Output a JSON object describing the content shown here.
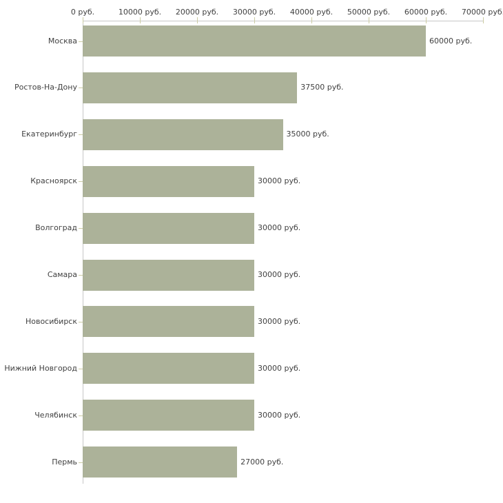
{
  "chart_data": {
    "type": "bar",
    "orientation": "horizontal",
    "title": "",
    "xlabel": "",
    "ylabel": "",
    "unit": "руб.",
    "categories": [
      "Москва",
      "Ростов-На-Дону",
      "Екатеринбург",
      "Красноярск",
      "Волгоград",
      "Самара",
      "Новосибирск",
      "Нижний Новгород",
      "Челябинск",
      "Пермь"
    ],
    "values": [
      60000,
      37500,
      35000,
      30000,
      30000,
      30000,
      30000,
      30000,
      30000,
      27000
    ],
    "value_labels": [
      "60000 руб.",
      "37500 руб.",
      "35000 руб.",
      "30000 руб.",
      "30000 руб.",
      "30000 руб.",
      "30000 руб.",
      "30000 руб.",
      "30000 руб.",
      "27000 руб."
    ],
    "x_ticks": [
      0,
      10000,
      20000,
      30000,
      40000,
      50000,
      60000,
      70000
    ],
    "x_tick_labels": [
      "0 руб.",
      "10000 руб.",
      "20000 руб.",
      "30000 руб.",
      "40000 руб.",
      "50000 руб.",
      "60000 руб.",
      "70000 руб."
    ],
    "xlim": [
      0,
      70000
    ],
    "grid": false,
    "legend": false,
    "colors": {
      "bar": "#ACB299",
      "axis_line": "#C6C6C6",
      "tick_mark": "#CCCCA3",
      "text": "#404040"
    }
  }
}
